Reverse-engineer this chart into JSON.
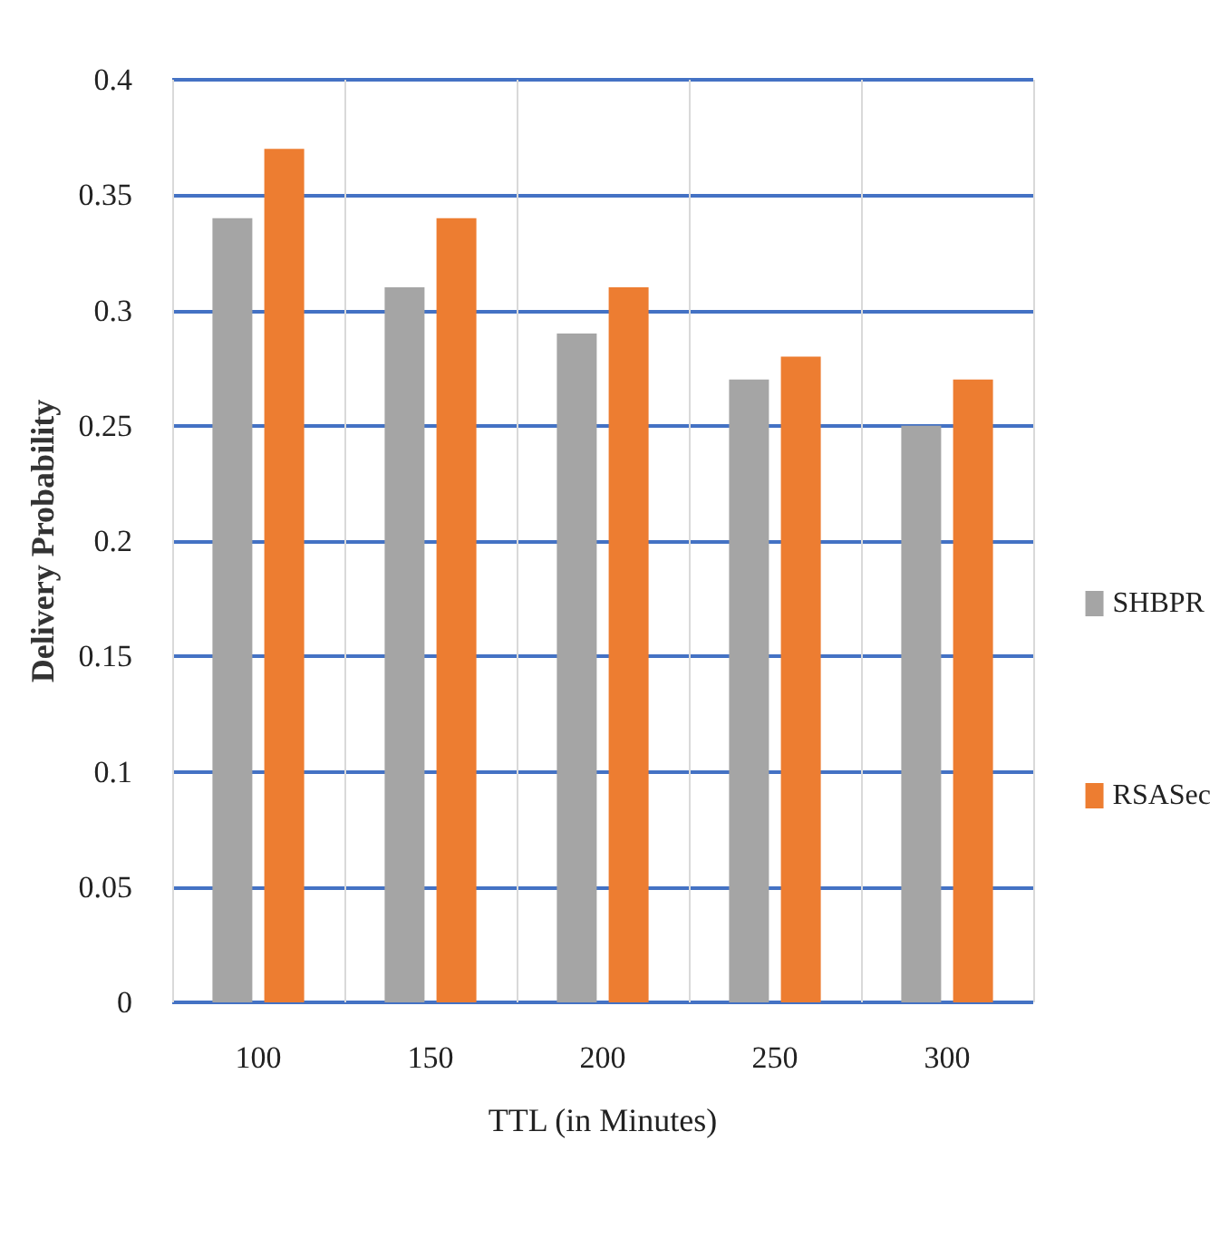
{
  "chart_data": {
    "type": "bar",
    "xlabel": "TTL (in Minutes)",
    "ylabel": "Delivery Probability",
    "categories": [
      "100",
      "150",
      "200",
      "250",
      "300"
    ],
    "series": [
      {
        "name": "SHBPR",
        "color": "#a5a5a5",
        "values": [
          0.34,
          0.31,
          0.29,
          0.27,
          0.25
        ]
      },
      {
        "name": "RSASec",
        "color": "#ed7d31",
        "values": [
          0.37,
          0.34,
          0.31,
          0.28,
          0.27
        ]
      }
    ],
    "ylim": [
      0,
      0.4
    ],
    "yticks": [
      0,
      0.05,
      0.1,
      0.15,
      0.2,
      0.25,
      0.3,
      0.35,
      0.4
    ],
    "grid": true,
    "legend": "right"
  }
}
